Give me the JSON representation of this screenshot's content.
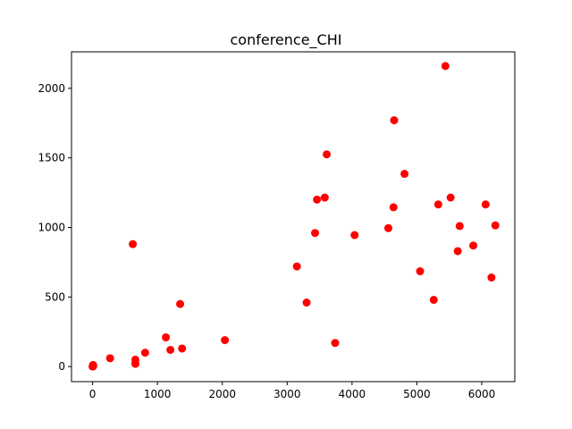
{
  "chart_data": {
    "type": "scatter",
    "title": "conference_CHI",
    "xlabel": "",
    "ylabel": "",
    "xlim": [
      -325,
      6510
    ],
    "ylim": [
      -108,
      2262
    ],
    "x_ticks": [
      0,
      1000,
      2000,
      3000,
      4000,
      5000,
      6000
    ],
    "y_ticks": [
      0,
      500,
      1000,
      1500,
      2000
    ],
    "grid": false,
    "marker_color": "#ff0000",
    "series": [
      {
        "points": [
          {
            "x": 0,
            "y": 0
          },
          {
            "x": 5,
            "y": 5
          },
          {
            "x": 10,
            "y": 3
          },
          {
            "x": 8,
            "y": 12
          },
          {
            "x": 270,
            "y": 60
          },
          {
            "x": 620,
            "y": 880
          },
          {
            "x": 660,
            "y": 50
          },
          {
            "x": 660,
            "y": 20
          },
          {
            "x": 810,
            "y": 100
          },
          {
            "x": 1130,
            "y": 210
          },
          {
            "x": 1200,
            "y": 120
          },
          {
            "x": 1350,
            "y": 450
          },
          {
            "x": 1380,
            "y": 130
          },
          {
            "x": 2040,
            "y": 190
          },
          {
            "x": 3150,
            "y": 720
          },
          {
            "x": 3300,
            "y": 460
          },
          {
            "x": 3430,
            "y": 960
          },
          {
            "x": 3460,
            "y": 1200
          },
          {
            "x": 3580,
            "y": 1215
          },
          {
            "x": 3610,
            "y": 1525
          },
          {
            "x": 3740,
            "y": 170
          },
          {
            "x": 4040,
            "y": 945
          },
          {
            "x": 4560,
            "y": 995
          },
          {
            "x": 4640,
            "y": 1145
          },
          {
            "x": 4650,
            "y": 1770
          },
          {
            "x": 4810,
            "y": 1385
          },
          {
            "x": 5050,
            "y": 685
          },
          {
            "x": 5260,
            "y": 480
          },
          {
            "x": 5330,
            "y": 1165
          },
          {
            "x": 5440,
            "y": 2160
          },
          {
            "x": 5520,
            "y": 1215
          },
          {
            "x": 5630,
            "y": 830
          },
          {
            "x": 5660,
            "y": 1010
          },
          {
            "x": 5870,
            "y": 870
          },
          {
            "x": 6060,
            "y": 1165
          },
          {
            "x": 6150,
            "y": 640
          },
          {
            "x": 6210,
            "y": 1015
          }
        ]
      }
    ]
  }
}
